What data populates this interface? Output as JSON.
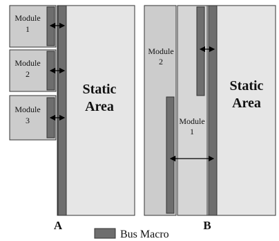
{
  "panel_a": {
    "label": "A",
    "modules": [
      {
        "line1": "Module",
        "line2": "1"
      },
      {
        "line1": "Module",
        "line2": "2"
      },
      {
        "line1": "Module",
        "line2": "3"
      }
    ],
    "static": {
      "line1": "Static",
      "line2": "Area"
    }
  },
  "panel_b": {
    "label": "B",
    "modules": [
      {
        "line1": "Module",
        "line2": "2"
      },
      {
        "line1": "Module",
        "line2": "1"
      }
    ],
    "static": {
      "line1": "Static",
      "line2": "Area"
    }
  },
  "legend": {
    "label": "Bus Macro",
    "swatch_icon": "bus-macro-swatch-icon"
  },
  "colors": {
    "module_fill": "#cccccc",
    "static_fill": "#e6e6e6",
    "bus_macro_fill": "#6e6e6e",
    "stroke": "#333333"
  }
}
